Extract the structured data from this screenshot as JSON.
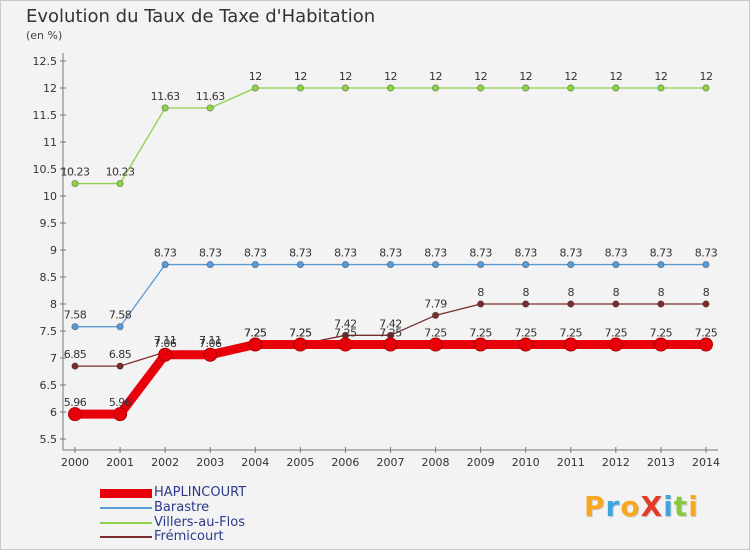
{
  "title": "Evolution du Taux de Taxe d'Habitation",
  "unit_label": "(en %)",
  "logo": {
    "text": "ProXiti",
    "letters": [
      {
        "ch": "P",
        "color": "#f7a722"
      },
      {
        "ch": "r",
        "color": "#3fa5dc"
      },
      {
        "ch": "o",
        "color": "#f7a722"
      },
      {
        "ch": "X",
        "color": "#e23b2a"
      },
      {
        "ch": "i",
        "color": "#3fa5dc"
      },
      {
        "ch": "t",
        "color": "#8cc63f"
      },
      {
        "ch": "i",
        "color": "#f7a722"
      }
    ]
  },
  "chart_data": {
    "type": "line",
    "title": "Evolution du Taux de Taxe d'Habitation",
    "ylabel": "(en %)",
    "xlabel": "",
    "x": [
      "2000",
      "2001",
      "2002",
      "2003",
      "2004",
      "2005",
      "2006",
      "2007",
      "2008",
      "2009",
      "2010",
      "2011",
      "2012",
      "2013",
      "2014"
    ],
    "ylim": [
      5.5,
      12.5
    ],
    "yticks": [
      "5.5",
      "6",
      "6.5",
      "7",
      "7.5",
      "8",
      "8.5",
      "9",
      "9.5",
      "10",
      "10.5",
      "11",
      "11.5",
      "12",
      "12.5"
    ],
    "grid": false,
    "legend_position": "bottom-left",
    "series": [
      {
        "name": "HAPLINCOURT",
        "color": "#e8000a",
        "thick": true,
        "values": [
          5.96,
          5.96,
          7.06,
          7.06,
          7.25,
          7.25,
          7.25,
          7.25,
          7.25,
          7.25,
          7.25,
          7.25,
          7.25,
          7.25,
          7.25
        ],
        "labels": [
          "5.96",
          "5.96",
          "7.06",
          "7.06",
          "7.25",
          "7.25",
          "7.25",
          "7.25",
          "7.25",
          "7.25",
          "7.25",
          "7.25",
          "7.25",
          "7.25",
          "7.25"
        ]
      },
      {
        "name": "Barastre",
        "color": "#5b9bd5",
        "thick": false,
        "values": [
          7.58,
          7.58,
          8.73,
          8.73,
          8.73,
          8.73,
          8.73,
          8.73,
          8.73,
          8.73,
          8.73,
          8.73,
          8.73,
          8.73,
          8.73
        ],
        "labels": [
          "7.58",
          "7.58",
          "8.73",
          "8.73",
          "8.73",
          "8.73",
          "8.73",
          "8.73",
          "8.73",
          "8.73",
          "8.73",
          "8.73",
          "8.73",
          "8.73",
          "8.73"
        ]
      },
      {
        "name": "Villers-au-Flos",
        "color": "#8ed14b",
        "thick": false,
        "values": [
          10.23,
          10.23,
          11.63,
          11.63,
          12,
          12,
          12,
          12,
          12,
          12,
          12,
          12,
          12,
          12,
          12
        ],
        "labels": [
          "10.23",
          "10.23",
          "11.63",
          "11.63",
          "12",
          "12",
          "12",
          "12",
          "12",
          "12",
          "12",
          "12",
          "12",
          "12",
          "12"
        ]
      },
      {
        "name": "Frémicourt",
        "color": "#7b2d2d",
        "thick": false,
        "values": [
          6.85,
          6.85,
          7.11,
          7.11,
          7.25,
          7.25,
          7.42,
          7.42,
          7.79,
          8,
          8,
          8,
          8,
          8,
          8
        ],
        "labels": [
          "6.85",
          "6.85",
          "7.11",
          "7.11",
          "7.25",
          "7.25",
          "7.42",
          "7.42",
          "7.79",
          "8",
          "8",
          "8",
          "8",
          "8",
          "8"
        ]
      }
    ]
  }
}
